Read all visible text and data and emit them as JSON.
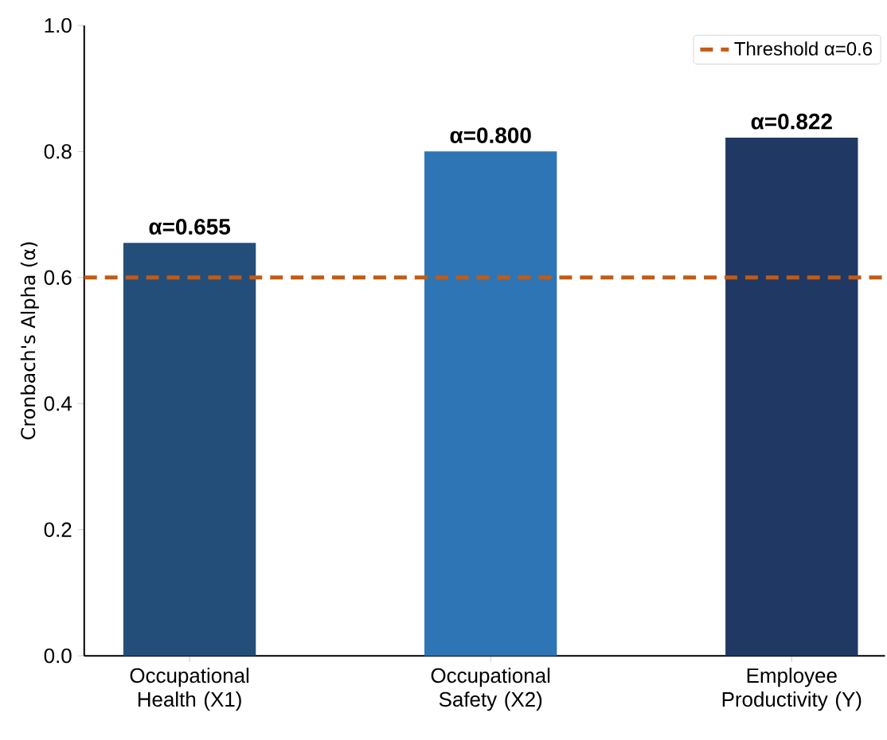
{
  "chart_data": {
    "type": "bar",
    "ylabel": "Cronbach's Alpha (α)",
    "categories": [
      "Occupational Health (X1)",
      "Occupational Safety (X2)",
      "Employee Productivity (Y)"
    ],
    "values": [
      0.655,
      0.8,
      0.822
    ],
    "colors": [
      "#234e7a",
      "#2e75b6",
      "#1f3864"
    ],
    "value_labels": [
      "α=0.655",
      "α=0.800",
      "α=0.822"
    ],
    "ylim": [
      0,
      1
    ],
    "yticks": [
      {
        "value": 0,
        "label": "0.0"
      },
      0.2,
      0.4,
      0.6,
      0.8,
      {
        "value": 1,
        "label": "1.0"
      }
    ],
    "ref_lines": [
      {
        "axis": "y",
        "value": 0.6,
        "label": "Threshold α=0.6",
        "color": "#c55a11",
        "line_style": "dashed"
      }
    ],
    "legend": "top right",
    "grid": false
  }
}
